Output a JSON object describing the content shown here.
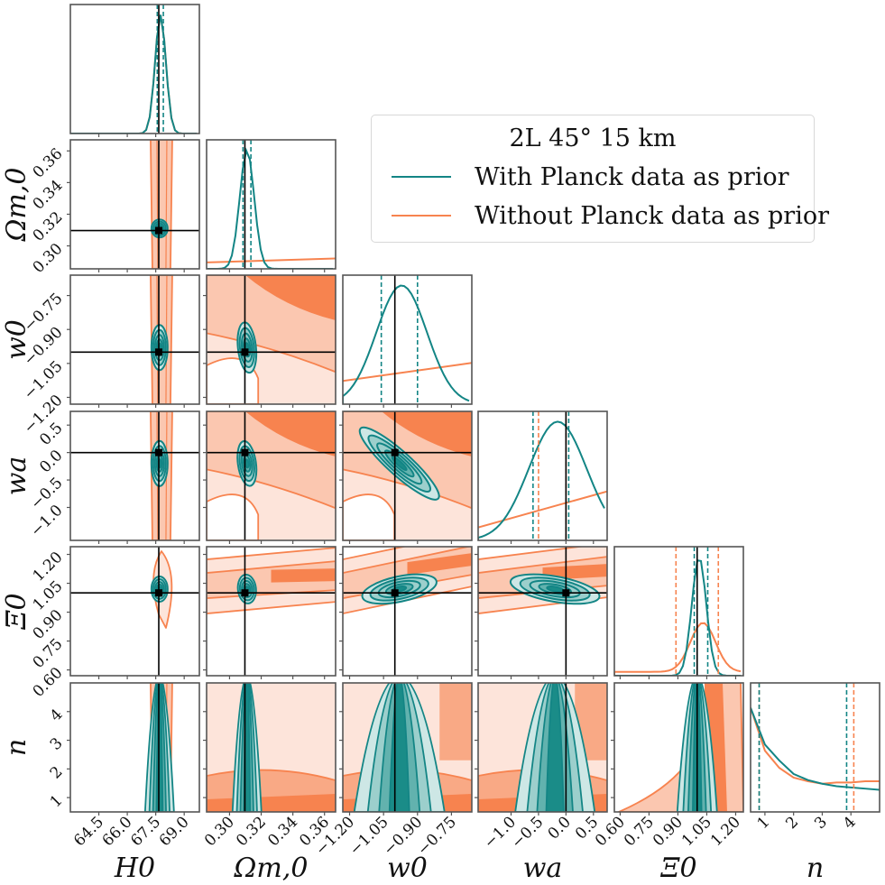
{
  "legend": {
    "title": "2L 45° 15 km",
    "entries": [
      {
        "label": "With Planck data as prior",
        "color": "#138585"
      },
      {
        "label": "Without Planck data as prior",
        "color": "#f7834f"
      }
    ]
  },
  "colors": {
    "with_planck": "#138585",
    "with_planck_fill": [
      "#cde7e5",
      "#9ccfcc",
      "#62b2ae",
      "#1a8c88"
    ],
    "without_planck": "#f7834f",
    "without_planck_fill": [
      "#fde4da",
      "#fbc7b0",
      "#f9a985",
      "#f7834f"
    ],
    "truth": "#000000",
    "axis": "#555555"
  },
  "chart_data": {
    "type": "corner",
    "title": "2L 45° 15 km",
    "parameters": [
      {
        "key": "H0",
        "label": "H_0",
        "truth": 67.66,
        "range": [
          63.0,
          69.8
        ],
        "ticks": [
          64.5,
          66.0,
          67.5,
          69.0
        ],
        "tick_labels": [
          "64.5",
          "66.0",
          "67.5",
          "69.0"
        ]
      },
      {
        "key": "Om0",
        "label": "Ω_m,0",
        "truth": 0.3097,
        "range": [
          0.2855,
          0.367
        ],
        "ticks": [
          0.3,
          0.32,
          0.34,
          0.36
        ],
        "tick_labels": [
          "0.30",
          "0.32",
          "0.34",
          "0.36"
        ]
      },
      {
        "key": "w0",
        "label": "w_0",
        "truth": -1.0,
        "range": [
          -1.23,
          -0.66
        ],
        "ticks": [
          -1.2,
          -1.05,
          -0.9,
          -0.75
        ],
        "tick_labels": [
          "−1.20",
          "−1.05",
          "−0.90",
          "−0.75"
        ]
      },
      {
        "key": "wa",
        "label": "w_a",
        "truth": 0.0,
        "range": [
          -1.6,
          0.75
        ],
        "ticks": [
          -1.0,
          -0.5,
          0.0,
          0.5
        ],
        "tick_labels": [
          "−1.0",
          "−0.5",
          "0.0",
          "0.5"
        ]
      },
      {
        "key": "Xi0",
        "label": "Ξ_0",
        "truth": 1.0,
        "range": [
          0.57,
          1.24
        ],
        "ticks": [
          0.6,
          0.75,
          0.9,
          1.05,
          1.2
        ],
        "tick_labels": [
          "0.60",
          "0.75",
          "0.90",
          "1.05",
          "1.20"
        ]
      },
      {
        "key": "n",
        "label": "n",
        "truth": null,
        "range": [
          0.5,
          5.0
        ],
        "ticks": [
          1,
          2,
          3,
          4
        ],
        "tick_labels": [
          "1",
          "2",
          "3",
          "4"
        ]
      }
    ],
    "series": [
      {
        "name": "With Planck data as prior",
        "color": "#138585",
        "medians": {
          "H0": 67.7,
          "Om0": 0.311,
          "w0": -0.98,
          "wa": -0.22,
          "Xi0": 1.01
        },
        "quantiles_16_84": {
          "H0": [
            67.58,
            67.9
          ],
          "Om0": [
            0.3085,
            0.3135
          ],
          "w0": [
            -1.06,
            -0.9
          ],
          "wa": [
            -0.6,
            0.05
          ],
          "Xi0": [
            0.985,
            1.055
          ],
          "n": [
            0.8,
            3.85
          ]
        }
      },
      {
        "name": "Without Planck data as prior",
        "color": "#f7834f",
        "medians": {
          "Xi0": 1.03
        },
        "quantiles_16_84": {
          "wa": [
            -0.5,
            0.0
          ],
          "Xi0": [
            0.89,
            1.11
          ],
          "n": [
            0.8,
            4.1
          ]
        }
      }
    ],
    "histograms": {
      "n": {
        "x": [
          0.5,
          1.0,
          1.5,
          2.0,
          2.5,
          3.0,
          3.5,
          4.0,
          4.5,
          5.0
        ],
        "with_planck": [
          0.85,
          0.55,
          0.42,
          0.31,
          0.26,
          0.23,
          0.21,
          0.2,
          0.19,
          0.18
        ],
        "without_planck": [
          0.85,
          0.5,
          0.36,
          0.28,
          0.25,
          0.23,
          0.24,
          0.24,
          0.25,
          0.25
        ]
      }
    },
    "axis_labels": [
      "H_0",
      "Ω_m,0",
      "w_0",
      "w_a",
      "Ξ_0",
      "n"
    ]
  }
}
